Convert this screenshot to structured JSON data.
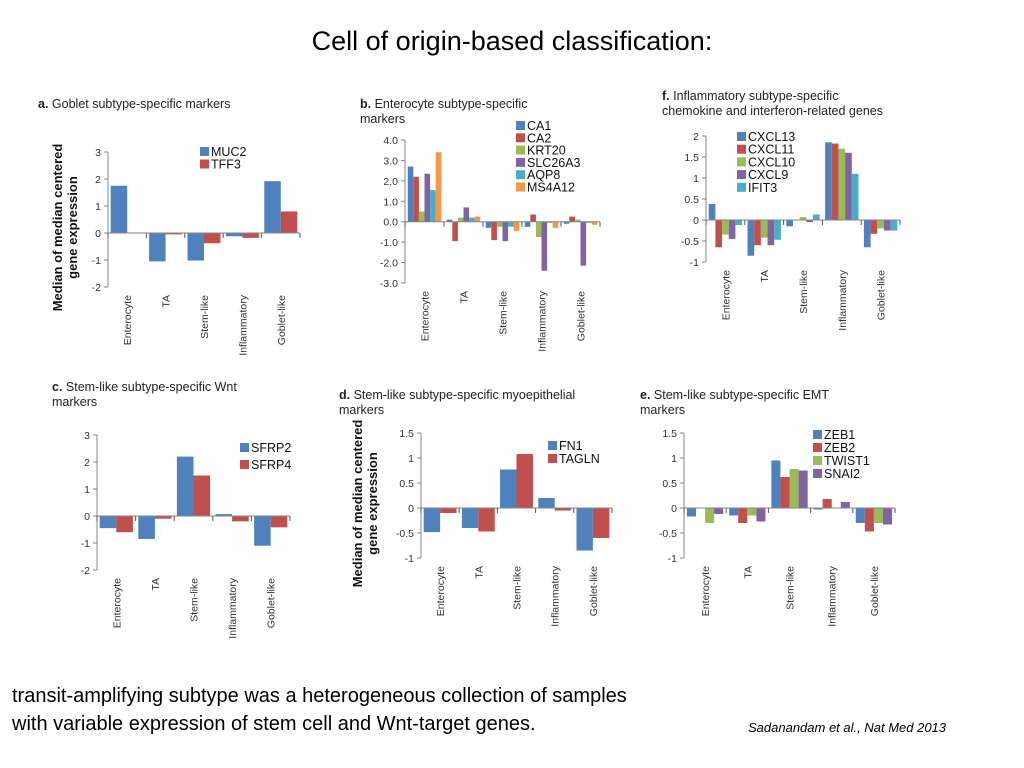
{
  "slide": {
    "title": "Cell of origin-based classification:",
    "footnote_line1": "transit-amplifying subtype was a heterogeneous collection of samples",
    "footnote_line2": "with variable expression of stem cell and Wnt-target genes.",
    "citation": "Sadanandam  et al., Nat Med 2013"
  },
  "colors": {
    "blue": "#4f81bd",
    "red": "#c0504d",
    "green": "#9bbb59",
    "purple": "#8064a2",
    "cyan": "#4bacc6",
    "orange": "#f79646"
  },
  "chart_data": [
    {
      "type": "bar",
      "letter": "a.",
      "title": "Goblet subtype-specific markers",
      "title2": "",
      "ylabel": [
        "Median of median centered",
        "gene expression"
      ],
      "categories": [
        "Enterocyte",
        "TA",
        "Stem-like",
        "Inflammatory",
        "Goblet-like"
      ],
      "ylim": [
        -2,
        3
      ],
      "yticks": [
        3,
        2,
        1,
        0,
        -1,
        -2
      ],
      "tick_decimals": 0,
      "legend": "top-right",
      "series": [
        {
          "name": "MUC2",
          "color": "#4f81bd",
          "values": [
            1.75,
            -1.05,
            -1.02,
            -0.12,
            1.92
          ]
        },
        {
          "name": "TFF3",
          "color": "#c0504d",
          "values": [
            0.02,
            -0.05,
            -0.38,
            -0.18,
            0.8
          ]
        }
      ]
    },
    {
      "type": "bar",
      "letter": "b.",
      "title": "Enterocyte subtype-specific",
      "title2": "markers",
      "ylabel": [],
      "categories": [
        "Enterocyte",
        "TA",
        "Stem-like",
        "Inflammatory",
        "Goblet-like"
      ],
      "ylim": [
        -3,
        4
      ],
      "yticks": [
        4,
        3,
        2,
        1,
        0,
        -1,
        -2,
        -3
      ],
      "tick_decimals": 1,
      "legend": "top-right",
      "series": [
        {
          "name": "CA1",
          "color": "#4f81bd",
          "values": [
            2.7,
            0.1,
            -0.3,
            -0.25,
            -0.1
          ]
        },
        {
          "name": "CA2",
          "color": "#c0504d",
          "values": [
            2.2,
            -0.95,
            -0.9,
            0.35,
            0.25
          ]
        },
        {
          "name": "KRT20",
          "color": "#9bbb59",
          "values": [
            0.5,
            0.2,
            -0.25,
            -0.75,
            0.1
          ]
        },
        {
          "name": "SLC26A3",
          "color": "#8064a2",
          "values": [
            2.35,
            0.7,
            -0.95,
            -2.4,
            -2.15
          ]
        },
        {
          "name": "AQP8",
          "color": "#4bacc6",
          "values": [
            1.55,
            0.2,
            -0.25,
            -0.05,
            -0.05
          ]
        },
        {
          "name": "MS4A12",
          "color": "#f79646",
          "values": [
            3.4,
            0.25,
            -0.45,
            -0.3,
            -0.15
          ]
        }
      ]
    },
    {
      "type": "bar",
      "letter": "f.",
      "title": "Inflammatory subtype-specific",
      "title2": "chemokine and interferon-related genes",
      "ylabel": [],
      "categories": [
        "Enterocyte",
        "TA",
        "Stem-like",
        "Inflammatory",
        "Goblet-like"
      ],
      "ylim": [
        -1,
        2
      ],
      "yticks": [
        2,
        1.5,
        1,
        0.5,
        0,
        -0.5,
        -1
      ],
      "tick_decimals": -1,
      "legend": "top-left",
      "series": [
        {
          "name": "CXCL13",
          "color": "#4f81bd",
          "values": [
            0.38,
            -0.85,
            -0.15,
            1.85,
            -0.65
          ]
        },
        {
          "name": "CXCL11",
          "color": "#c0504d",
          "values": [
            -0.65,
            -0.6,
            0,
            1.82,
            -0.33
          ]
        },
        {
          "name": "CXCL10",
          "color": "#9bbb59",
          "values": [
            -0.35,
            -0.42,
            0.07,
            1.7,
            -0.2
          ]
        },
        {
          "name": "CXCL9",
          "color": "#8064a2",
          "values": [
            -0.45,
            -0.6,
            -0.05,
            1.6,
            -0.25
          ]
        },
        {
          "name": "IFIT3",
          "color": "#4bacc6",
          "values": [
            -0.12,
            -0.47,
            0.13,
            1.1,
            -0.25
          ]
        }
      ]
    },
    {
      "type": "bar",
      "letter": "c.",
      "title": "Stem-like subtype-specific Wnt",
      "title2": "markers",
      "ylabel": [],
      "categories": [
        "Enterocyte",
        "TA",
        "Stem-like",
        "Inflammatory",
        "Goblet-like"
      ],
      "ylim": [
        -2,
        3
      ],
      "yticks": [
        3,
        2,
        1,
        0,
        -1,
        -2
      ],
      "tick_decimals": 0,
      "legend": "top-right",
      "series": [
        {
          "name": "SFRP2",
          "color": "#4f81bd",
          "values": [
            -0.45,
            -0.85,
            2.2,
            0.07,
            -1.1
          ]
        },
        {
          "name": "SFRP4",
          "color": "#c0504d",
          "values": [
            -0.6,
            -0.1,
            1.5,
            -0.2,
            -0.42
          ]
        }
      ]
    },
    {
      "type": "bar",
      "letter": "d.",
      "title": "Stem-like subtype-specific myoepithelial",
      "title2": "markers",
      "ylabel": [
        "Median of median centered",
        "gene expression"
      ],
      "categories": [
        "Enterocyte",
        "TA",
        "Stem-like",
        "Inflammatory",
        "Goblet-like"
      ],
      "ylim": [
        -1,
        1.5
      ],
      "yticks": [
        1.5,
        1,
        0.5,
        0,
        -0.5,
        -1
      ],
      "tick_decimals": -1,
      "legend": "top-right",
      "series": [
        {
          "name": "FN1",
          "color": "#4f81bd",
          "values": [
            -0.48,
            -0.4,
            0.77,
            0.2,
            -0.85
          ]
        },
        {
          "name": "TAGLN",
          "color": "#c0504d",
          "values": [
            -0.1,
            -0.47,
            1.08,
            -0.05,
            -0.6
          ]
        }
      ]
    },
    {
      "type": "bar",
      "letter": "e.",
      "title": "Stem-like subtype-specific EMT",
      "title2": "markers",
      "ylabel": [],
      "categories": [
        "Enterocyte",
        "TA",
        "Stem-like",
        "Inflammatory",
        "Goblet-like"
      ],
      "ylim": [
        -1,
        1.5
      ],
      "yticks": [
        1.5,
        1,
        0.5,
        0,
        -0.5,
        -1
      ],
      "tick_decimals": -1,
      "legend": "top-right",
      "series": [
        {
          "name": "ZEB1",
          "color": "#4f81bd",
          "values": [
            -0.17,
            -0.15,
            0.95,
            -0.03,
            -0.3
          ]
        },
        {
          "name": "ZEB2",
          "color": "#c0504d",
          "values": [
            0,
            -0.3,
            0.62,
            0.18,
            -0.47
          ]
        },
        {
          "name": "TWIST1",
          "color": "#9bbb59",
          "values": [
            -0.3,
            -0.15,
            0.78,
            0,
            -0.3
          ]
        },
        {
          "name": "SNAI2",
          "color": "#8064a2",
          "values": [
            -0.12,
            -0.27,
            0.75,
            0.12,
            -0.33
          ]
        }
      ]
    }
  ]
}
